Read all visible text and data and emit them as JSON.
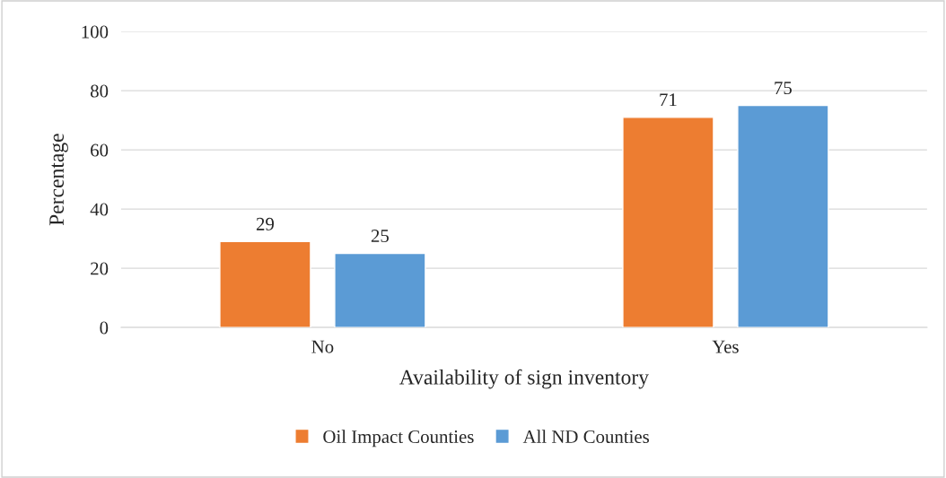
{
  "chart_data": {
    "type": "bar",
    "xlabel": "Availability of sign inventory",
    "ylabel": "Percentage",
    "categories": [
      "No",
      "Yes"
    ],
    "series": [
      {
        "name": "Oil Impact Counties",
        "color": "#ed7d31",
        "values": [
          29,
          71
        ]
      },
      {
        "name": "All ND Counties",
        "color": "#5b9bd5",
        "values": [
          25,
          75
        ]
      }
    ],
    "ylim": [
      0,
      100
    ],
    "yticks": [
      0,
      20,
      40,
      60,
      80,
      100
    ],
    "grid": "y",
    "legend": "bottom",
    "data_labels": true
  }
}
